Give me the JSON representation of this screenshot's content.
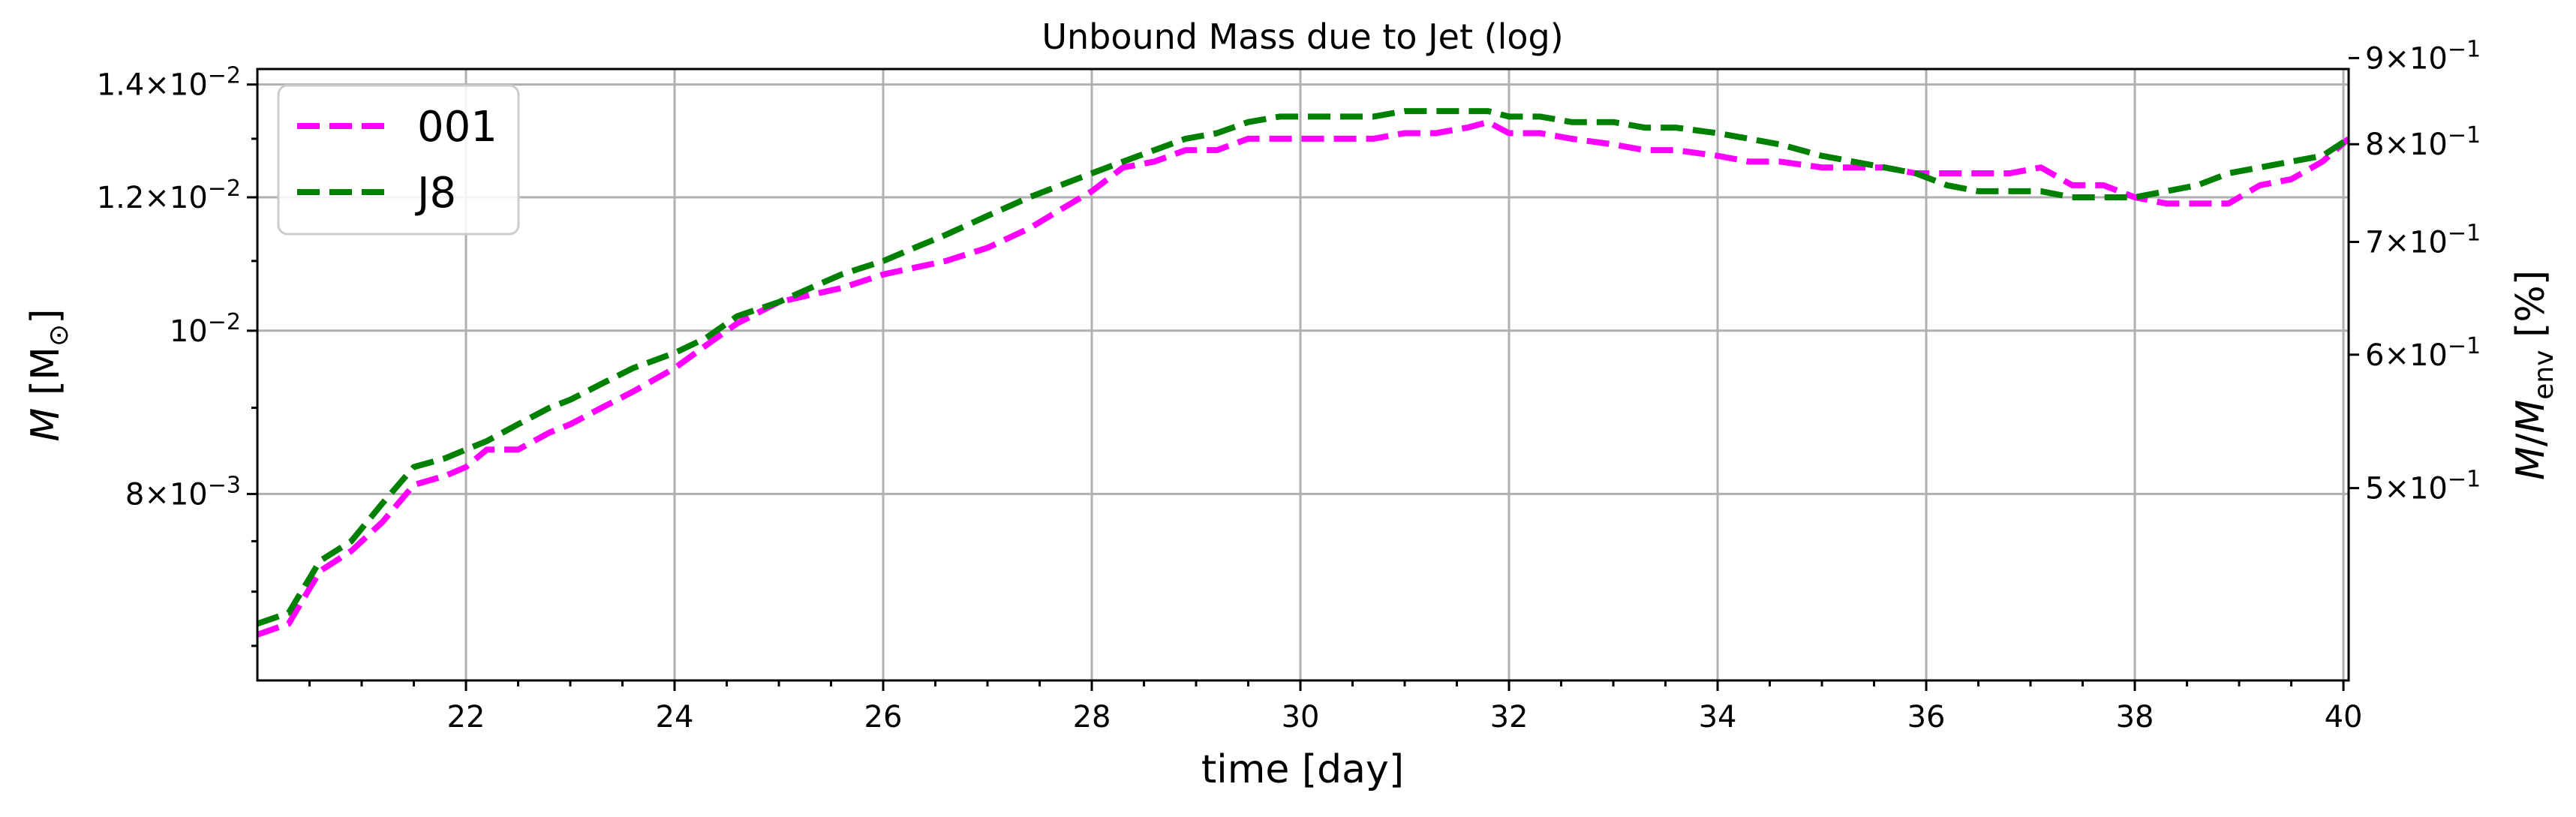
{
  "chart_data": {
    "type": "line",
    "title": "Unbound Mass due to Jet (log)",
    "xlabel": "time [day]",
    "ylabel": "M [M⊙]",
    "ylabel_right": "M/M_env [%]",
    "xlim": [
      20.0,
      40.05
    ],
    "ylim": [
      0.0062,
      0.0143
    ],
    "yscale": "log",
    "grid": true,
    "legend_position": "upper-left",
    "x_ticks": [
      "22",
      "24",
      "26",
      "28",
      "30",
      "32",
      "34",
      "36",
      "38",
      "40"
    ],
    "y_ticks_left": [
      {
        "value": 0.008,
        "mantissa": "8",
        "exp": "−3"
      },
      {
        "value": 0.01,
        "mantissa": "",
        "exp": "−2"
      },
      {
        "value": 0.012,
        "mantissa": "1.2",
        "exp": "−2"
      },
      {
        "value": 0.014,
        "mantissa": "1.4",
        "exp": "−2"
      }
    ],
    "y_ticks_right": [
      {
        "value": 0.5,
        "mantissa": "5",
        "exp": "−1"
      },
      {
        "value": 0.6,
        "mantissa": "6",
        "exp": "−1"
      },
      {
        "value": 0.7,
        "mantissa": "7",
        "exp": "−1"
      },
      {
        "value": 0.8,
        "mantissa": "8",
        "exp": "−1"
      },
      {
        "value": 0.9,
        "mantissa": "9",
        "exp": "−1"
      }
    ],
    "right_axis_ratio": 62.0,
    "series": [
      {
        "name": "001",
        "color": "#ff00ff",
        "x": [
          20.0,
          20.3,
          20.6,
          20.9,
          21.2,
          21.5,
          21.8,
          22.0,
          22.2,
          22.5,
          22.8,
          23.0,
          23.3,
          23.6,
          24.0,
          24.3,
          24.6,
          25.0,
          25.3,
          25.6,
          26.0,
          26.3,
          26.6,
          27.0,
          27.4,
          27.7,
          28.0,
          28.3,
          28.6,
          28.9,
          29.2,
          29.5,
          29.8,
          30.1,
          30.4,
          30.7,
          31.0,
          31.3,
          31.6,
          31.8,
          32.0,
          32.3,
          32.6,
          33.0,
          33.3,
          33.6,
          34.0,
          34.3,
          34.6,
          35.0,
          35.3,
          35.6,
          35.9,
          36.2,
          36.5,
          36.8,
          37.1,
          37.4,
          37.7,
          38.0,
          38.3,
          38.6,
          38.9,
          39.2,
          39.5,
          39.8,
          40.05
        ],
        "y": [
          0.0066,
          0.0067,
          0.0072,
          0.0074,
          0.0077,
          0.0081,
          0.0082,
          0.0083,
          0.0085,
          0.0085,
          0.0087,
          0.0088,
          0.009,
          0.0092,
          0.0095,
          0.0098,
          0.0101,
          0.0104,
          0.0105,
          0.0106,
          0.0108,
          0.0109,
          0.011,
          0.0112,
          0.0115,
          0.0118,
          0.0121,
          0.0125,
          0.0126,
          0.0128,
          0.0128,
          0.013,
          0.013,
          0.013,
          0.013,
          0.013,
          0.0131,
          0.0131,
          0.0132,
          0.0133,
          0.0131,
          0.0131,
          0.013,
          0.0129,
          0.0128,
          0.0128,
          0.0127,
          0.0126,
          0.0126,
          0.0125,
          0.0125,
          0.0125,
          0.0124,
          0.0124,
          0.0124,
          0.0124,
          0.0125,
          0.0122,
          0.0122,
          0.012,
          0.0119,
          0.0119,
          0.0119,
          0.0122,
          0.0123,
          0.0126,
          0.013
        ]
      },
      {
        "name": "J8",
        "color": "#008000",
        "x": [
          20.0,
          20.3,
          20.6,
          20.9,
          21.2,
          21.5,
          21.8,
          22.0,
          22.2,
          22.5,
          22.8,
          23.0,
          23.3,
          23.6,
          24.0,
          24.3,
          24.6,
          25.0,
          25.3,
          25.6,
          26.0,
          26.3,
          26.6,
          27.0,
          27.4,
          27.7,
          28.0,
          28.3,
          28.6,
          28.9,
          29.2,
          29.5,
          29.8,
          30.1,
          30.4,
          30.7,
          31.0,
          31.3,
          31.6,
          31.8,
          32.0,
          32.3,
          32.6,
          33.0,
          33.3,
          33.6,
          34.0,
          34.3,
          34.6,
          35.0,
          35.3,
          35.6,
          35.9,
          36.2,
          36.5,
          36.8,
          37.1,
          37.4,
          37.7,
          38.0,
          38.3,
          38.6,
          38.9,
          39.2,
          39.5,
          39.8,
          40.05
        ],
        "y": [
          0.0067,
          0.0068,
          0.0073,
          0.0075,
          0.0079,
          0.0083,
          0.0084,
          0.0085,
          0.0086,
          0.0088,
          0.009,
          0.0091,
          0.0093,
          0.0095,
          0.0097,
          0.0099,
          0.0102,
          0.0104,
          0.0106,
          0.0108,
          0.011,
          0.0112,
          0.0114,
          0.0117,
          0.012,
          0.0122,
          0.0124,
          0.0126,
          0.0128,
          0.013,
          0.0131,
          0.0133,
          0.0134,
          0.0134,
          0.0134,
          0.0134,
          0.0135,
          0.0135,
          0.0135,
          0.0135,
          0.0134,
          0.0134,
          0.0133,
          0.0133,
          0.0132,
          0.0132,
          0.0131,
          0.013,
          0.0129,
          0.0127,
          0.0126,
          0.0125,
          0.0124,
          0.0122,
          0.0121,
          0.0121,
          0.0121,
          0.012,
          0.012,
          0.012,
          0.0121,
          0.0122,
          0.0124,
          0.0125,
          0.0126,
          0.0127,
          0.013
        ]
      }
    ]
  }
}
